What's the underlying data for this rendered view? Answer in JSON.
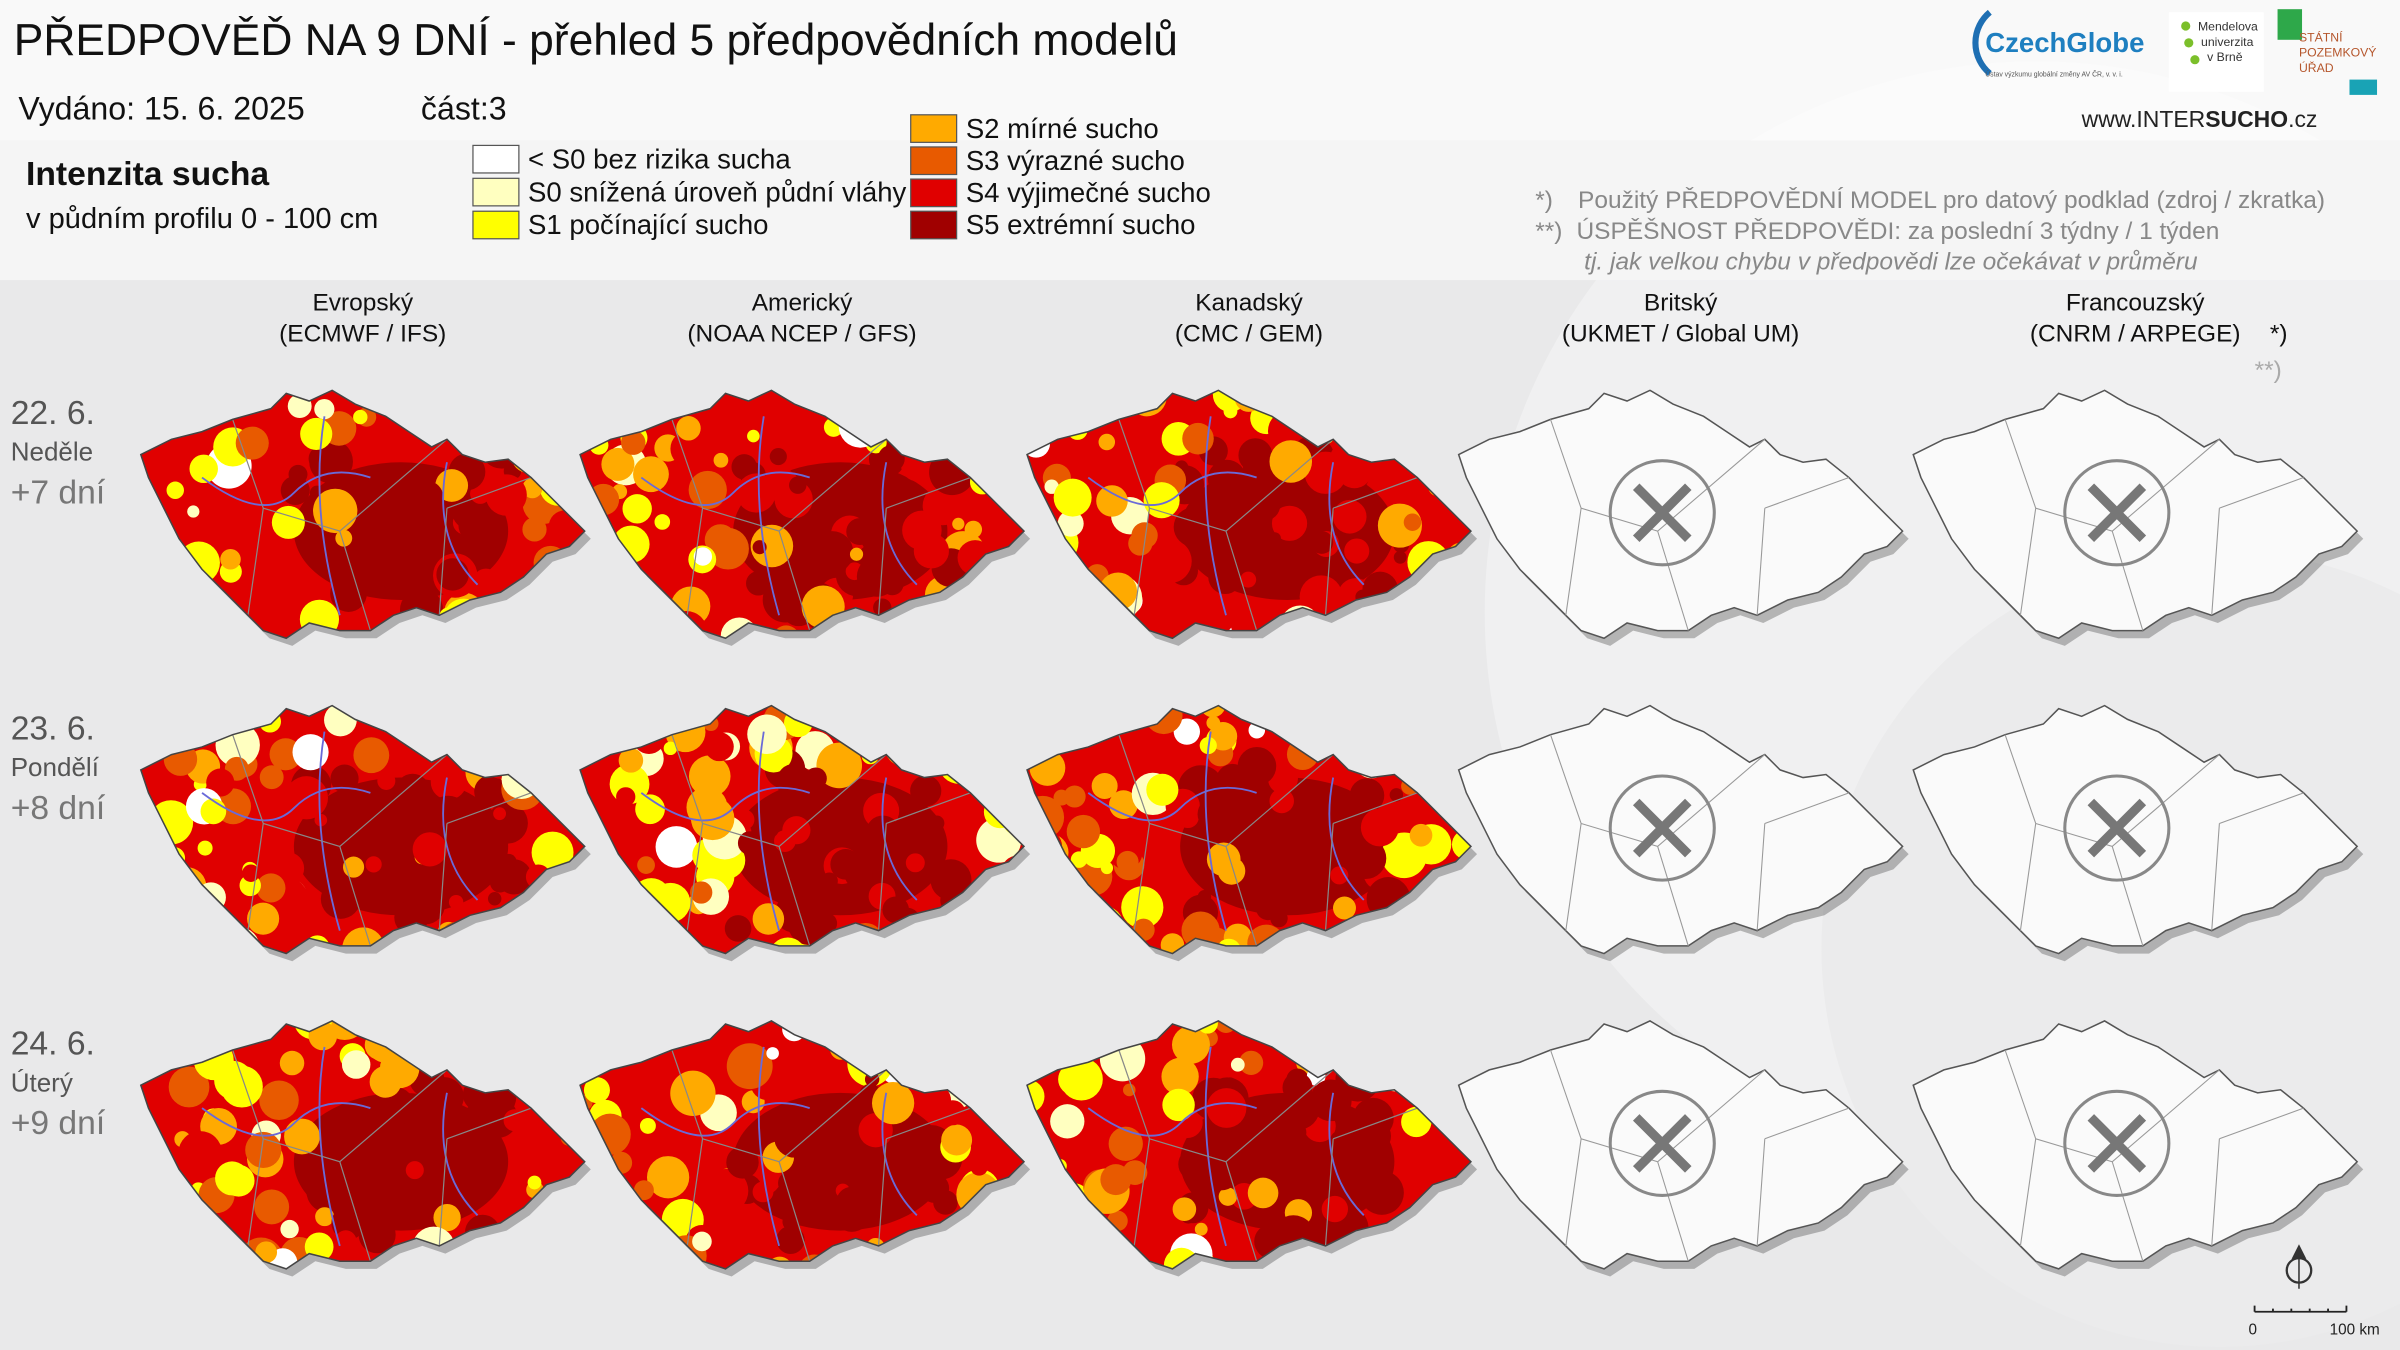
{
  "header": {
    "title": "PŘEDPOVĚĎ NA 9 DNÍ - přehled 5 předpovědních modelů",
    "issued": "Vydáno: 15. 6. 2025",
    "part": "část:3",
    "website": [
      "www.INTER",
      "SUCHO",
      ".cz"
    ]
  },
  "logos": {
    "czechglobe": "CzechGlobe",
    "czechglobe_sub": "Ústav výzkumu globální změny AV ČR, v. v. i.",
    "mendelu": [
      "Mendelova",
      "univerzita",
      "v Brně"
    ],
    "spu": [
      "STÁTNÍ",
      "POZEMKOVÝ",
      "ÚŘAD"
    ]
  },
  "legend": {
    "title": "Intenzita sucha",
    "subtitle": "v půdním profilu 0 - 100 cm",
    "items": [
      {
        "label": "< S0 bez rizika sucha",
        "color": "#ffffff"
      },
      {
        "label": "S0 snížená úroveň půdní vláhy",
        "color": "#ffffc0"
      },
      {
        "label": "S1 počínající sucho",
        "color": "#ffff00"
      },
      {
        "label": "S2 mírné sucho",
        "color": "#ffaa00"
      },
      {
        "label": "S3 výrazné sucho",
        "color": "#e85a00"
      },
      {
        "label": "S4 výjimečné sucho",
        "color": "#e00000"
      },
      {
        "label": "S5 extrémní sucho",
        "color": "#a00000"
      }
    ]
  },
  "notes": [
    {
      "marker": "*)",
      "text": "Použitý PŘEDPOVĚDNÍ MODEL pro datový podklad (zdroj / zkratka)"
    },
    {
      "marker": "**)",
      "text": "ÚSPĚŠNOST PŘEDPOVĚDI: za poslední 3 týdny / 1 týden"
    },
    {
      "text": "tj. jak velkou chybu v předpovědi lze očekávat v průměru"
    }
  ],
  "models": [
    {
      "name": "Evropský",
      "code": "(ECMWF / IFS)"
    },
    {
      "name": "Americký",
      "code": "(NOAA NCEP / GFS)"
    },
    {
      "name": "Kanadský",
      "code": "(CMC / GEM)"
    },
    {
      "name": "Britský",
      "code": "(UKMET / Global UM)"
    },
    {
      "name": "Francouzský",
      "code": "(CNRM / ARPEGE)",
      "note_markers": [
        "*)",
        "**)"
      ]
    }
  ],
  "rows": [
    {
      "date": "22. 6.",
      "day": "Neděle",
      "lead": "+7 dní"
    },
    {
      "date": "23. 6.",
      "day": "Pondělí",
      "lead": "+8 dní"
    },
    {
      "date": "24. 6.",
      "day": "Úterý",
      "lead": "+9 dní"
    }
  ],
  "scale": {
    "start": "0",
    "end": "100 km"
  }
}
